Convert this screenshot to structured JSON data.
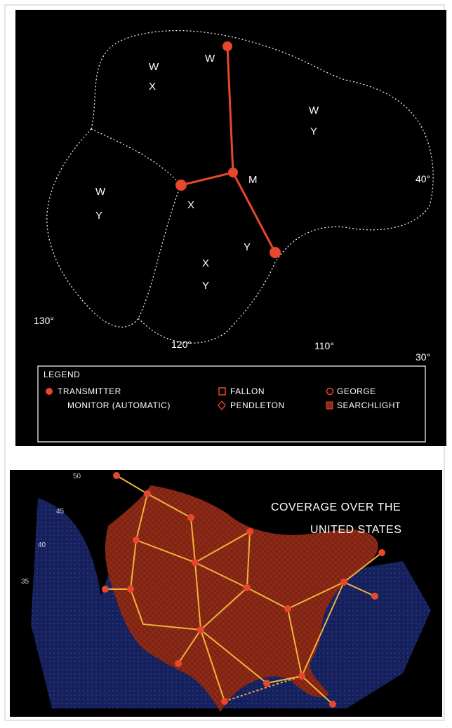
{
  "top_map": {
    "zone_labels": [
      {
        "id": "nw-top",
        "text": "W"
      },
      {
        "id": "nw-bottom",
        "text": "X"
      },
      {
        "id": "ne-top",
        "text": "W"
      },
      {
        "id": "ne-bottom",
        "text": "Y"
      },
      {
        "id": "w-top",
        "text": "W"
      },
      {
        "id": "w-bottom",
        "text": "Y"
      },
      {
        "id": "s-top",
        "text": "X"
      },
      {
        "id": "s-bottom",
        "text": "Y"
      }
    ],
    "station_labels": {
      "w": "W",
      "m": "M",
      "x": "X",
      "y": "Y"
    },
    "longitude_labels": [
      "130°",
      "120°",
      "110°"
    ],
    "latitude_labels": [
      "40°",
      "30°"
    ],
    "legend": {
      "title": "LEGEND",
      "items": [
        {
          "label": "TRANSMITTER",
          "symbol": "dot"
        },
        {
          "label": "MONITOR (AUTOMATIC)",
          "symbol": "none"
        },
        {
          "label": "FALLON",
          "symbol": "square"
        },
        {
          "label": "PENDLETON",
          "symbol": "diamond"
        },
        {
          "label": "GEORGE",
          "symbol": "circle"
        },
        {
          "label": "SEARCHLIGHT",
          "symbol": "hatch"
        }
      ]
    },
    "colors": {
      "background": "#000000",
      "transmitter": "#e8472c",
      "boundary": "#ffffff"
    }
  },
  "bottom_map": {
    "title_line1": "COVERAGE OVER THE",
    "title_line2": "UNITED STATES",
    "latitude_marks": [
      "50",
      "45",
      "40",
      "35"
    ],
    "colors": {
      "background": "#000000",
      "land": "#8e2a17",
      "ocean": "#1d2c78",
      "chain_line": "#f0b43a",
      "transmitter": "#e8472c"
    }
  }
}
